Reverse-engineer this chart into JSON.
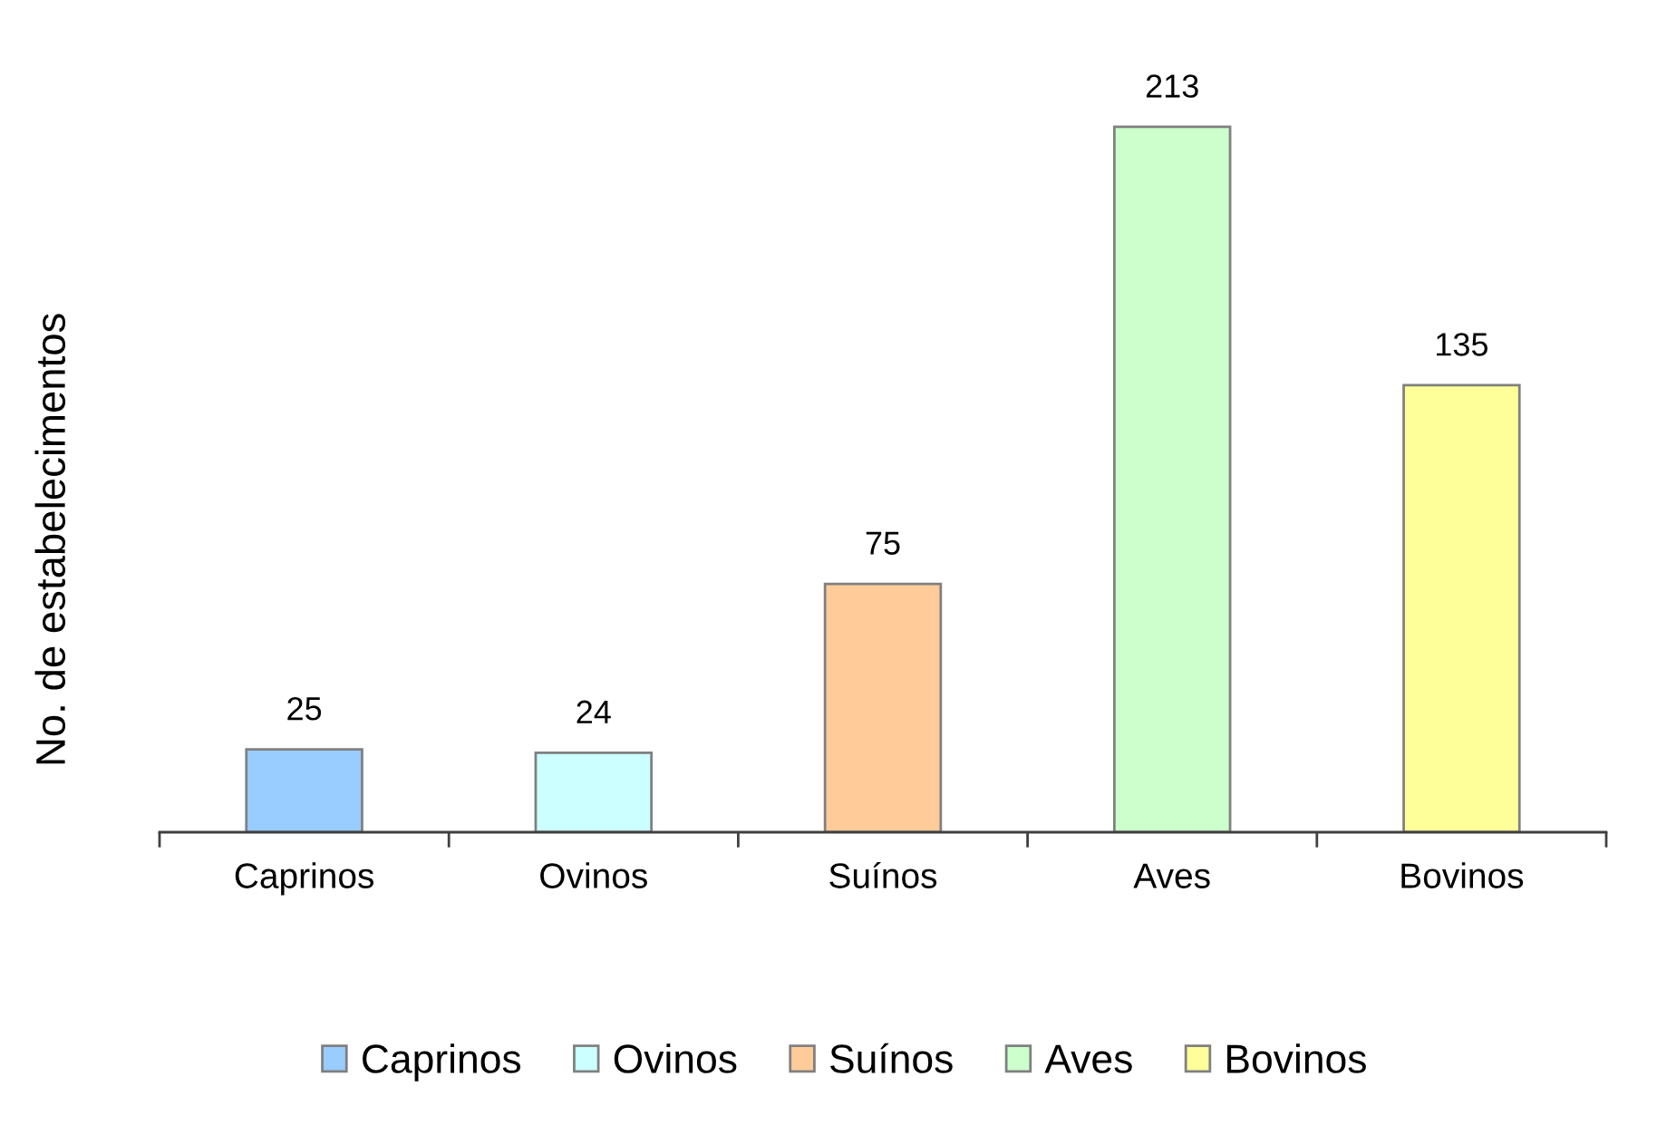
{
  "chart_data": {
    "type": "bar",
    "ylabel": "No. de estabelecimentos",
    "categories": [
      "Caprinos",
      "Ovinos",
      "Suínos",
      "Aves",
      "Bovinos"
    ],
    "series": [
      {
        "name": "Caprinos",
        "color": "#99ccff",
        "values": [
          25,
          null,
          null,
          null,
          null
        ]
      },
      {
        "name": "Ovinos",
        "color": "#ccffff",
        "values": [
          null,
          24,
          null,
          null,
          null
        ]
      },
      {
        "name": "Suínos",
        "color": "#ffcc99",
        "values": [
          null,
          null,
          75,
          null,
          null
        ]
      },
      {
        "name": "Aves",
        "color": "#ccffcc",
        "values": [
          null,
          null,
          null,
          213,
          null
        ]
      },
      {
        "name": "Bovinos",
        "color": "#ffff99",
        "values": [
          null,
          null,
          null,
          null,
          135
        ]
      }
    ],
    "data_labels": true,
    "legend": "bottom",
    "grid": false
  }
}
